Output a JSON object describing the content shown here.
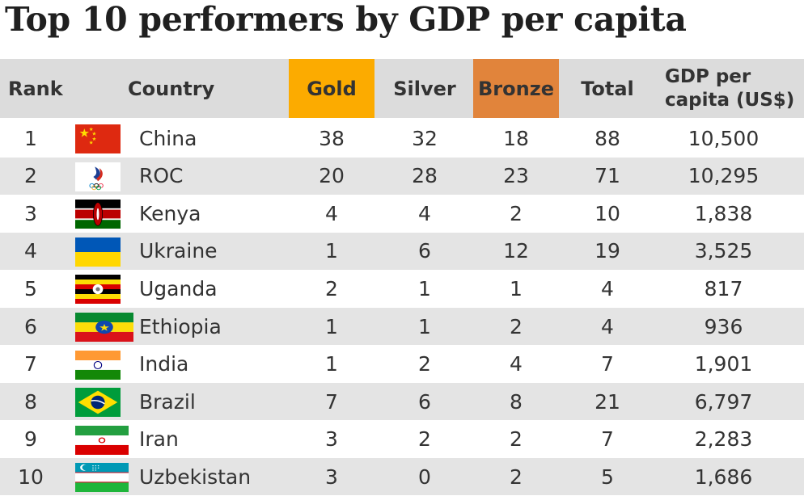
{
  "title": "Top 10 performers by GDP per capita",
  "chart_data": {
    "type": "table",
    "title": "Top 10 performers by GDP per capita",
    "columns": [
      "Rank",
      "Country",
      "Gold",
      "Silver",
      "Bronze",
      "Total",
      "GDP per capita (US$)"
    ],
    "header_colors": {
      "gold": "#fcab00",
      "bronze": "#e1843b",
      "header": "#dcdcdc",
      "shade": "#e4e4e4"
    },
    "rows": [
      {
        "rank": "1",
        "country": "China",
        "flag": "china-flag-icon",
        "gold": "38",
        "silver": "32",
        "bronze": "18",
        "total": "88",
        "gdp": "10,500"
      },
      {
        "rank": "2",
        "country": "ROC",
        "flag": "roc-flag-icon",
        "gold": "20",
        "silver": "28",
        "bronze": "23",
        "total": "71",
        "gdp": "10,295"
      },
      {
        "rank": "3",
        "country": "Kenya",
        "flag": "kenya-flag-icon",
        "gold": "4",
        "silver": "4",
        "bronze": "2",
        "total": "10",
        "gdp": "1,838"
      },
      {
        "rank": "4",
        "country": "Ukraine",
        "flag": "ukraine-flag-icon",
        "gold": "1",
        "silver": "6",
        "bronze": "12",
        "total": "19",
        "gdp": "3,525"
      },
      {
        "rank": "5",
        "country": "Uganda",
        "flag": "uganda-flag-icon",
        "gold": "2",
        "silver": "1",
        "bronze": "1",
        "total": "4",
        "gdp": "817"
      },
      {
        "rank": "6",
        "country": "Ethiopia",
        "flag": "ethiopia-flag-icon",
        "gold": "1",
        "silver": "1",
        "bronze": "2",
        "total": "4",
        "gdp": "936"
      },
      {
        "rank": "7",
        "country": "India",
        "flag": "india-flag-icon",
        "gold": "1",
        "silver": "2",
        "bronze": "4",
        "total": "7",
        "gdp": "1,901"
      },
      {
        "rank": "8",
        "country": "Brazil",
        "flag": "brazil-flag-icon",
        "gold": "7",
        "silver": "6",
        "bronze": "8",
        "total": "21",
        "gdp": "6,797"
      },
      {
        "rank": "9",
        "country": "Iran",
        "flag": "iran-flag-icon",
        "gold": "3",
        "silver": "2",
        "bronze": "2",
        "total": "7",
        "gdp": "2,283"
      },
      {
        "rank": "10",
        "country": "Uzbekistan",
        "flag": "uzbekistan-flag-icon",
        "gold": "3",
        "silver": "0",
        "bronze": "2",
        "total": "5",
        "gdp": "1,686"
      }
    ]
  },
  "header": {
    "rank": "Rank",
    "country": "Country",
    "gold": "Gold",
    "silver": "Silver",
    "bronze": "Bronze",
    "total": "Total",
    "gdp_line1": "GDP per",
    "gdp_line2": "capita (US$)"
  }
}
